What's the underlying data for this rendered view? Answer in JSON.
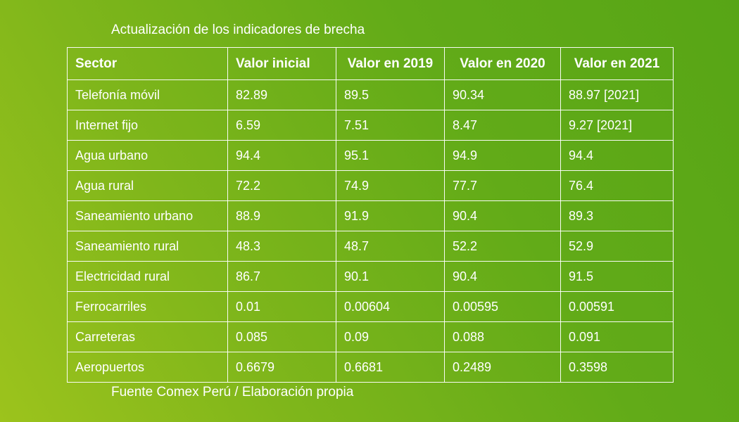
{
  "chart_data": {
    "type": "table",
    "title": "Actualización de los indicadores de brecha",
    "source": "Fuente Comex Perú / Elaboración propia",
    "columns": [
      "Sector",
      "Valor inicial",
      "Valor en 2019",
      "Valor en 2020",
      "Valor en 2021"
    ],
    "rows": [
      {
        "sector": "Telefonía móvil",
        "inicial": "82.89",
        "v2019": "89.5",
        "v2020": "90.34",
        "v2021": "88.97 [2021]"
      },
      {
        "sector": "Internet fijo",
        "inicial": "6.59",
        "v2019": "7.51",
        "v2020": "8.47",
        "v2021": "9.27 [2021]"
      },
      {
        "sector": "Agua urbano",
        "inicial": "94.4",
        "v2019": "95.1",
        "v2020": "94.9",
        "v2021": "94.4"
      },
      {
        "sector": "Agua rural",
        "inicial": "72.2",
        "v2019": "74.9",
        "v2020": "77.7",
        "v2021": "76.4"
      },
      {
        "sector": "Saneamiento urbano",
        "inicial": "88.9",
        "v2019": "91.9",
        "v2020": "90.4",
        "v2021": "89.3"
      },
      {
        "sector": "Saneamiento rural",
        "inicial": "48.3",
        "v2019": "48.7",
        "v2020": "52.2",
        "v2021": "52.9"
      },
      {
        "sector": "Electricidad rural",
        "inicial": "86.7",
        "v2019": "90.1",
        "v2020": "90.4",
        "v2021": "91.5"
      },
      {
        "sector": "Ferrocarriles",
        "inicial": "0.01",
        "v2019": "0.00604",
        "v2020": "0.00595",
        "v2021": "0.00591"
      },
      {
        "sector": "Carreteras",
        "inicial": "0.085",
        "v2019": "0.09",
        "v2020": "0.088",
        "v2021": "0.091"
      },
      {
        "sector": "Aeropuertos",
        "inicial": "0.6679",
        "v2019": "0.6681",
        "v2020": "0.2489",
        "v2021": "0.3598"
      }
    ]
  }
}
